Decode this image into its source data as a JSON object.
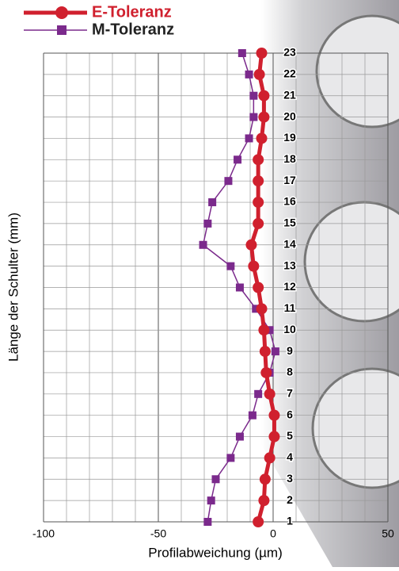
{
  "chart_data": {
    "type": "line",
    "orientation": "horizontal",
    "xlabel": "Profilabweichung (µm)",
    "ylabel": "Länge der Schulter (mm)",
    "categories": [
      1,
      2,
      3,
      4,
      5,
      6,
      7,
      8,
      9,
      10,
      11,
      12,
      13,
      14,
      15,
      16,
      17,
      18,
      19,
      20,
      21,
      22,
      23
    ],
    "xlim": [
      -100,
      50
    ],
    "xticks": [
      -100,
      -50,
      0,
      50
    ],
    "grid": true,
    "series": [
      {
        "name": "E-Toleranz",
        "color": "#d0202e",
        "values": [
          -6.5,
          -4,
          -3.5,
          -1.5,
          0.5,
          0.5,
          -1.5,
          -3,
          -3.5,
          -4,
          -5,
          -6.5,
          -8.5,
          -9.5,
          -6.5,
          -6.5,
          -6.5,
          -6.5,
          -5,
          -4,
          -4,
          -6,
          -5
        ]
      },
      {
        "name": "M-Toleranz",
        "color": "#7b2a8c",
        "values": [
          -28.5,
          -27,
          -25,
          -18.5,
          -14.5,
          -9,
          -6.5,
          -1.5,
          1,
          -1.5,
          -7.5,
          -14.5,
          -18.5,
          -30.5,
          -28.5,
          -26.5,
          -19.5,
          -15.5,
          -10.5,
          -8.5,
          -8.5,
          -10.5,
          -13.5
        ]
      }
    ]
  }
}
